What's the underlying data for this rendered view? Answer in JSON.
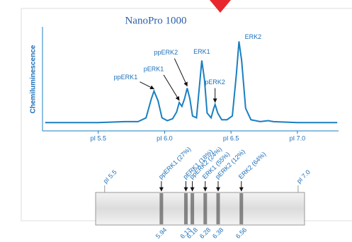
{
  "chart_data": [
    {
      "type": "line",
      "title": "NanoPro 1000",
      "y_label": "Chemiluminescence",
      "color": "#1a7fc1",
      "x": [
        5.1,
        5.3,
        5.5,
        5.7,
        5.8,
        5.86,
        5.9,
        5.92,
        5.95,
        5.98,
        6.02,
        6.06,
        6.09,
        6.11,
        6.13,
        6.15,
        6.17,
        6.19,
        6.21,
        6.24,
        6.26,
        6.28,
        6.3,
        6.32,
        6.35,
        6.37,
        6.38,
        6.4,
        6.43,
        6.47,
        6.51,
        6.54,
        6.56,
        6.58,
        6.61,
        6.65,
        6.72,
        6.78,
        6.82,
        7.0,
        7.3
      ],
      "values": [
        5,
        5,
        5,
        6,
        6,
        10,
        30,
        38,
        28,
        10,
        7,
        9,
        16,
        26,
        22,
        30,
        41,
        30,
        12,
        10,
        40,
        70,
        50,
        15,
        10,
        20,
        24,
        15,
        8,
        8,
        12,
        55,
        90,
        70,
        20,
        8,
        6,
        7,
        6,
        5,
        5
      ],
      "xlim": [
        5.08,
        7.31
      ],
      "ylim": [
        0,
        100
      ],
      "xticks": [
        {
          "value": 5.5,
          "label": "pI 5.5"
        },
        {
          "value": 6.0,
          "label": "pI 6.0"
        },
        {
          "value": 6.5,
          "label": "pI 6.5"
        },
        {
          "value": 7.0,
          "label": "pI 7.0"
        }
      ],
      "annotations": [
        {
          "text": "ppERK1",
          "x": 5.92
        },
        {
          "text": "pERK1",
          "x": 6.11
        },
        {
          "text": "ppERK2",
          "x": 6.17
        },
        {
          "text": "ERK1",
          "x": 6.28
        },
        {
          "text": "pERK2",
          "x": 6.38
        },
        {
          "text": "ERK2",
          "x": 6.56
        }
      ]
    },
    {
      "type": "lane",
      "xlim": [
        5.43,
        7.05
      ],
      "xticks": [
        {
          "value": 5.5,
          "label": "pI 5.5"
        },
        {
          "value": 7.0,
          "label": "pI 7.0"
        }
      ],
      "categories": [
        "ppERK1 (27%)",
        "pERK1 (18%)",
        "ppERK2 (24%)",
        "ERK1 (55%)",
        "pERK2 (12%)",
        "ERK2 (64%)"
      ],
      "values": [
        5.94,
        6.13,
        6.18,
        6.28,
        6.38,
        6.56
      ]
    }
  ]
}
